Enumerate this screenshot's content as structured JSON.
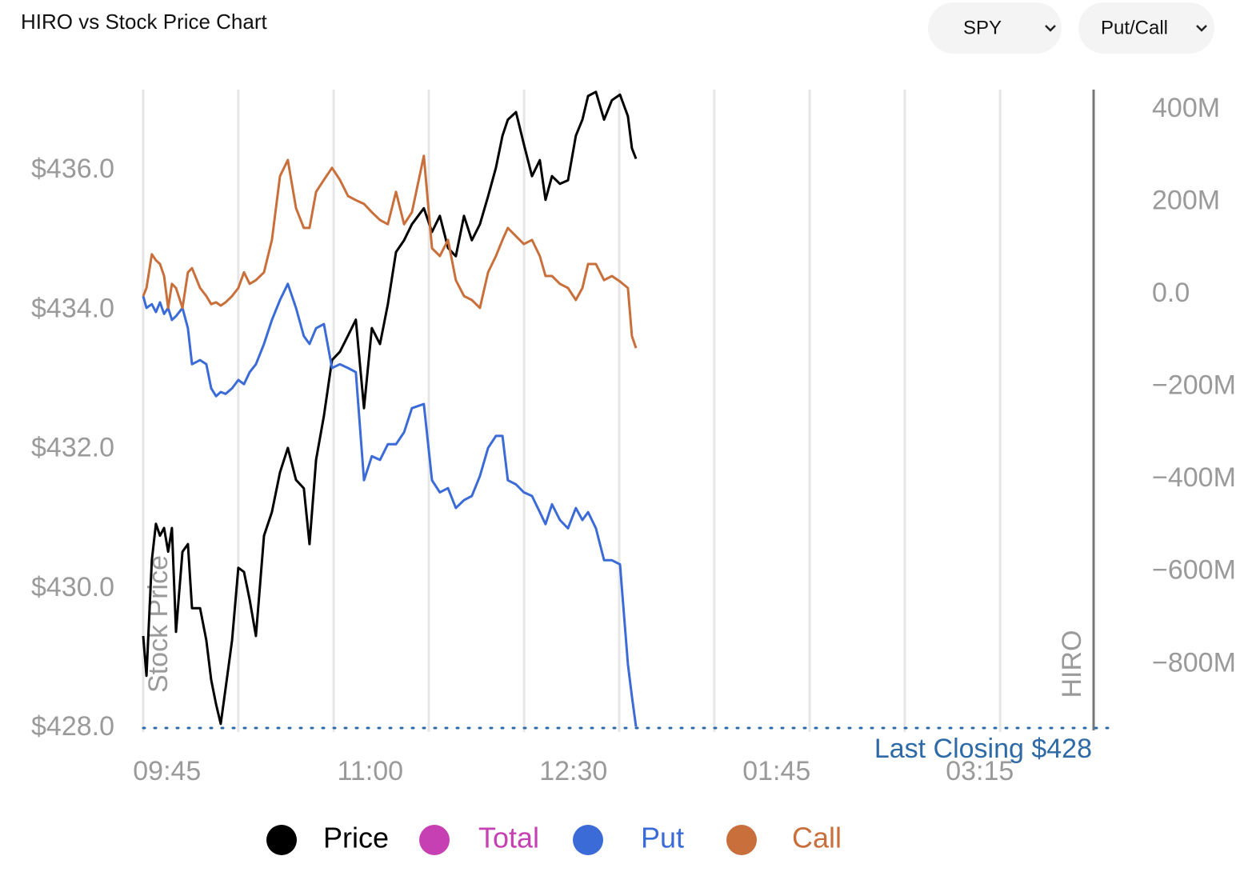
{
  "header": {
    "title": "HIRO vs Stock Price Chart",
    "dropdowns": [
      "SPY",
      "Put/Call"
    ]
  },
  "chart_data": {
    "type": "line",
    "x": [
      6.2,
      7.4,
      9.4,
      10.9,
      12.4,
      13.9,
      15.4,
      16.8,
      18.3,
      20.7,
      22.7,
      24.2,
      27.2,
      29.5,
      31.3,
      33.1,
      34.8,
      36.6,
      39.0,
      41.3,
      43.4,
      45.5,
      47.8,
      50.8,
      53.7,
      56.7,
      59.6,
      62.6,
      65.5,
      67.6,
      70.0,
      72.9,
      75.9,
      78.8,
      81.8,
      84.7,
      87.7,
      90.6,
      93.6,
      96.5,
      99.5,
      102.5,
      105.4,
      109.8,
      112.8,
      115.7,
      118.7,
      121.6,
      124.6,
      127.5,
      130.5,
      133.5,
      136.4,
      138.8,
      140.8,
      143.8,
      146.7,
      149.7,
      152.6,
      154.7,
      157.1,
      160.0,
      163.0,
      165.9,
      168.3,
      170.4,
      173.3,
      176.3,
      179.2,
      182.2,
      185.1,
      186.6,
      188.1
    ],
    "series": [
      {
        "name": "Price",
        "color": "#000000",
        "axis": "y",
        "values": [
          429.32,
          428.75,
          430.41,
          430.93,
          430.76,
          430.87,
          430.53,
          430.87,
          429.38,
          430.53,
          430.64,
          429.72,
          429.72,
          429.26,
          428.69,
          428.34,
          428.06,
          428.57,
          429.26,
          430.3,
          430.24,
          429.84,
          429.32,
          430.76,
          431.1,
          431.67,
          432.02,
          431.56,
          431.44,
          430.64,
          431.85,
          432.48,
          433.28,
          433.4,
          433.63,
          433.86,
          432.59,
          433.74,
          433.51,
          434.08,
          434.83,
          435.0,
          435.23,
          435.46,
          435.12,
          435.35,
          434.89,
          434.77,
          435.35,
          435.0,
          435.23,
          435.63,
          436.04,
          436.5,
          436.73,
          436.84,
          436.38,
          435.92,
          436.15,
          435.58,
          435.92,
          435.81,
          435.86,
          436.5,
          436.73,
          437.07,
          437.13,
          436.73,
          437.01,
          437.09,
          436.78,
          436.32,
          436.17
        ]
      },
      {
        "name": "Total",
        "color": "#c640b4",
        "axis": "y2",
        "values": [
          null,
          null,
          null,
          null,
          null,
          null,
          null,
          null,
          null,
          null,
          null,
          null,
          null,
          null,
          null,
          null,
          null,
          null,
          null,
          null,
          null,
          null,
          null,
          null,
          null,
          null,
          null,
          null,
          null,
          null,
          null,
          null,
          null,
          null,
          null,
          null,
          null,
          null,
          null,
          null,
          null,
          null,
          null,
          null,
          null,
          null,
          null,
          null,
          null,
          null,
          null,
          null,
          null,
          null,
          null,
          null,
          null,
          null,
          null,
          null,
          null,
          null,
          null,
          null,
          null,
          null,
          null,
          null,
          null,
          null,
          null,
          null,
          null
        ]
      },
      {
        "name": "Put",
        "color": "#3b6bd6",
        "axis": "y2",
        "values": [
          -3.5,
          -29,
          -21,
          -38,
          -17,
          -42,
          -29,
          -55,
          -47,
          -29,
          -73,
          -151,
          -142,
          -151,
          -203,
          -220,
          -211,
          -215,
          -203,
          -185,
          -194,
          -168,
          -151,
          -107,
          -55,
          -12,
          23,
          -29,
          -90,
          -107,
          -73,
          -64,
          -159,
          -151,
          -159,
          -168,
          -402,
          -350,
          -358,
          -324,
          -324,
          -298,
          -246,
          -237,
          -402,
          -428,
          -419,
          -462,
          -445,
          -436,
          -393,
          -332,
          -306,
          -306,
          -402,
          -411,
          -428,
          -436,
          -471,
          -497,
          -454,
          -488,
          -506,
          -462,
          -488,
          -471,
          -506,
          -575,
          -575,
          -584,
          -800,
          -870,
          -935
        ]
      },
      {
        "name": "Call",
        "color": "#c96f3b",
        "axis": "y2",
        "values": [
          -3.5,
          14,
          87,
          74,
          66,
          40,
          -29,
          23,
          14,
          -29,
          48,
          57,
          14,
          -3.5,
          -21,
          -17,
          -24,
          -17,
          -3.5,
          14,
          48,
          23,
          31,
          48,
          118,
          256,
          291,
          187,
          144,
          144,
          222,
          248,
          274,
          248,
          213,
          204,
          196,
          178,
          161,
          152,
          222,
          152,
          178,
          300,
          100,
          83,
          118,
          31,
          -3.5,
          -12,
          -29,
          48,
          83,
          118,
          144,
          126,
          109,
          118,
          83,
          40,
          40,
          23,
          14,
          -12,
          14,
          66,
          66,
          31,
          40,
          28,
          14,
          -90,
          -116
        ]
      }
    ],
    "xlim": [
      6.2,
      357
    ],
    "xticks": [
      {
        "value": 15,
        "label": "09:45"
      },
      {
        "value": 90,
        "label": "11:00"
      },
      {
        "value": 165,
        "label": "12:30"
      },
      {
        "value": 240,
        "label": "01:45"
      },
      {
        "value": 315,
        "label": "03:15"
      }
    ],
    "xgrid": [
      6.2,
      41.3,
      76.5,
      111.6,
      146.8,
      181.9,
      217.0,
      252.2,
      287.3,
      322.5
    ],
    "ylim": [
      428,
      437.2
    ],
    "yticks": [
      {
        "value": 428,
        "label": "$428.0"
      },
      {
        "value": 430,
        "label": "$430.0"
      },
      {
        "value": 432,
        "label": "$432.0"
      },
      {
        "value": 434,
        "label": "$434.0"
      },
      {
        "value": 436,
        "label": "$436.0"
      }
    ],
    "y2lim": [
      -938,
      449
    ],
    "y2ticks": [
      {
        "value": -800,
        "label": "−800M"
      },
      {
        "value": -600,
        "label": "−600M"
      },
      {
        "value": -400,
        "label": "−400M"
      },
      {
        "value": -200,
        "label": "−200M"
      },
      {
        "value": 0,
        "label": "0.0"
      },
      {
        "value": 200,
        "label": "200M"
      },
      {
        "value": 400,
        "label": "400M"
      }
    ],
    "y_label": "Stock Price",
    "y2_label": "HIRO",
    "last_close": 428,
    "annotation": "Last Closing $428",
    "grid": true
  }
}
